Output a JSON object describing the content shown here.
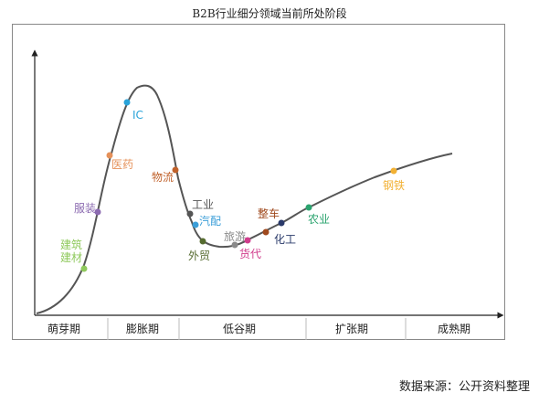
{
  "title": "B2B行业细分领域当前所处阶段",
  "source": "数据来源：公开资料整理",
  "chart_data": {
    "type": "line",
    "title": "B2B行业细分领域当前所处阶段",
    "xlabel": "",
    "ylabel": "",
    "stages": [
      "萌芽期",
      "膨胀期",
      "低谷期",
      "扩张期",
      "成熟期"
    ],
    "points": [
      {
        "label": "建筑\n建材",
        "stage": "萌芽期",
        "color": "#8fc95c"
      },
      {
        "label": "服装",
        "stage": "膨胀期",
        "color": "#8c6bb1"
      },
      {
        "label": "医药",
        "stage": "膨胀期",
        "color": "#e5915a"
      },
      {
        "label": "IC",
        "stage": "膨胀期",
        "color": "#29a3d9"
      },
      {
        "label": "物流",
        "stage": "低谷期",
        "color": "#c0612a"
      },
      {
        "label": "工业",
        "stage": "低谷期",
        "color": "#555555"
      },
      {
        "label": "汽配",
        "stage": "低谷期",
        "color": "#3b9ed8"
      },
      {
        "label": "外贸",
        "stage": "低谷期",
        "color": "#556b2f"
      },
      {
        "label": "旅游",
        "stage": "低谷期",
        "color": "#8a8a8a"
      },
      {
        "label": "货代",
        "stage": "低谷期",
        "color": "#d03c8c"
      },
      {
        "label": "整车",
        "stage": "低谷期",
        "color": "#a04a1e"
      },
      {
        "label": "化工",
        "stage": "扩张期",
        "color": "#2a3a6a"
      },
      {
        "label": "农业",
        "stage": "扩张期",
        "color": "#2aa36e"
      },
      {
        "label": "钢铁",
        "stage": "成熟期",
        "color": "#f2b134"
      }
    ]
  }
}
